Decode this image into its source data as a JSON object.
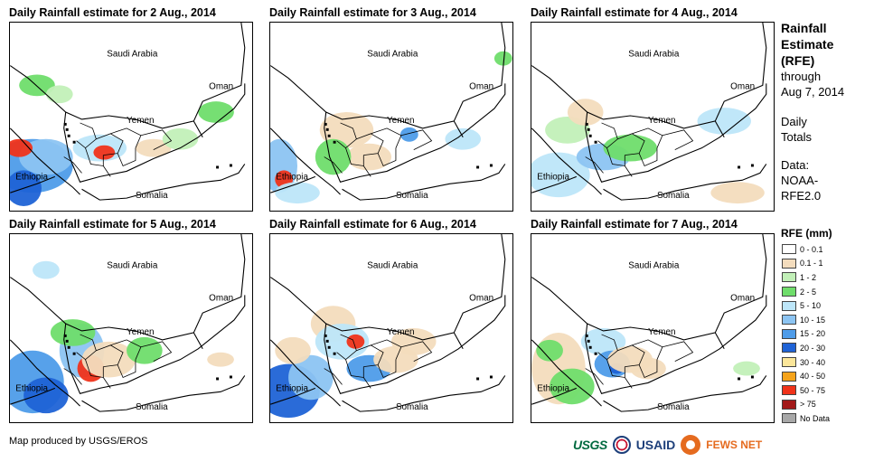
{
  "panels": [
    {
      "title": "Daily Rainfall estimate for 2 Aug., 2014"
    },
    {
      "title": "Daily Rainfall estimate for 3 Aug., 2014"
    },
    {
      "title": "Daily Rainfall estimate for 4 Aug., 2014"
    },
    {
      "title": "Daily Rainfall estimate for 5 Aug., 2014"
    },
    {
      "title": "Daily Rainfall estimate for 6 Aug., 2014"
    },
    {
      "title": "Daily Rainfall estimate for 7 Aug., 2014"
    }
  ],
  "map_labels": {
    "saudi": "Saudi Arabia",
    "oman": "Oman",
    "yemen": "Yemen",
    "ethiopia": "Ethiopia",
    "somalia": "Somalia"
  },
  "sidebar": {
    "title_lines": [
      "Rainfall",
      "Estimate",
      "(RFE)"
    ],
    "through_lines": [
      "through",
      "Aug 7, 2014"
    ],
    "daily_lines": [
      "Daily",
      "Totals"
    ],
    "data_lines": [
      "Data:",
      "NOAA-",
      "RFE2.0"
    ]
  },
  "legend": {
    "title": "RFE (mm)",
    "items": [
      {
        "label": "0 - 0.1",
        "color": "#ffffff"
      },
      {
        "label": "0.1 - 1",
        "color": "#f3dcbd"
      },
      {
        "label": "1 - 2",
        "color": "#c2f0b8"
      },
      {
        "label": "2 - 5",
        "color": "#6fdd6b"
      },
      {
        "label": "5 - 10",
        "color": "#bde6f9"
      },
      {
        "label": "10 - 15",
        "color": "#8cc4f2"
      },
      {
        "label": "15 - 20",
        "color": "#4e9ce9"
      },
      {
        "label": "20 - 30",
        "color": "#1f63d6"
      },
      {
        "label": "30 - 40",
        "color": "#fbe69a"
      },
      {
        "label": "40 - 50",
        "color": "#f5a31a"
      },
      {
        "label": "50 - 75",
        "color": "#f0331a"
      },
      {
        "label": "> 75",
        "color": "#a31a1a"
      },
      {
        "label": "No Data",
        "color": "#a8a8a8"
      }
    ]
  },
  "footer": {
    "credit": "Map produced by USGS/EROS"
  },
  "logos": {
    "usgs": "USGS",
    "usaid": "USAID",
    "fews": "FEWS NET"
  }
}
